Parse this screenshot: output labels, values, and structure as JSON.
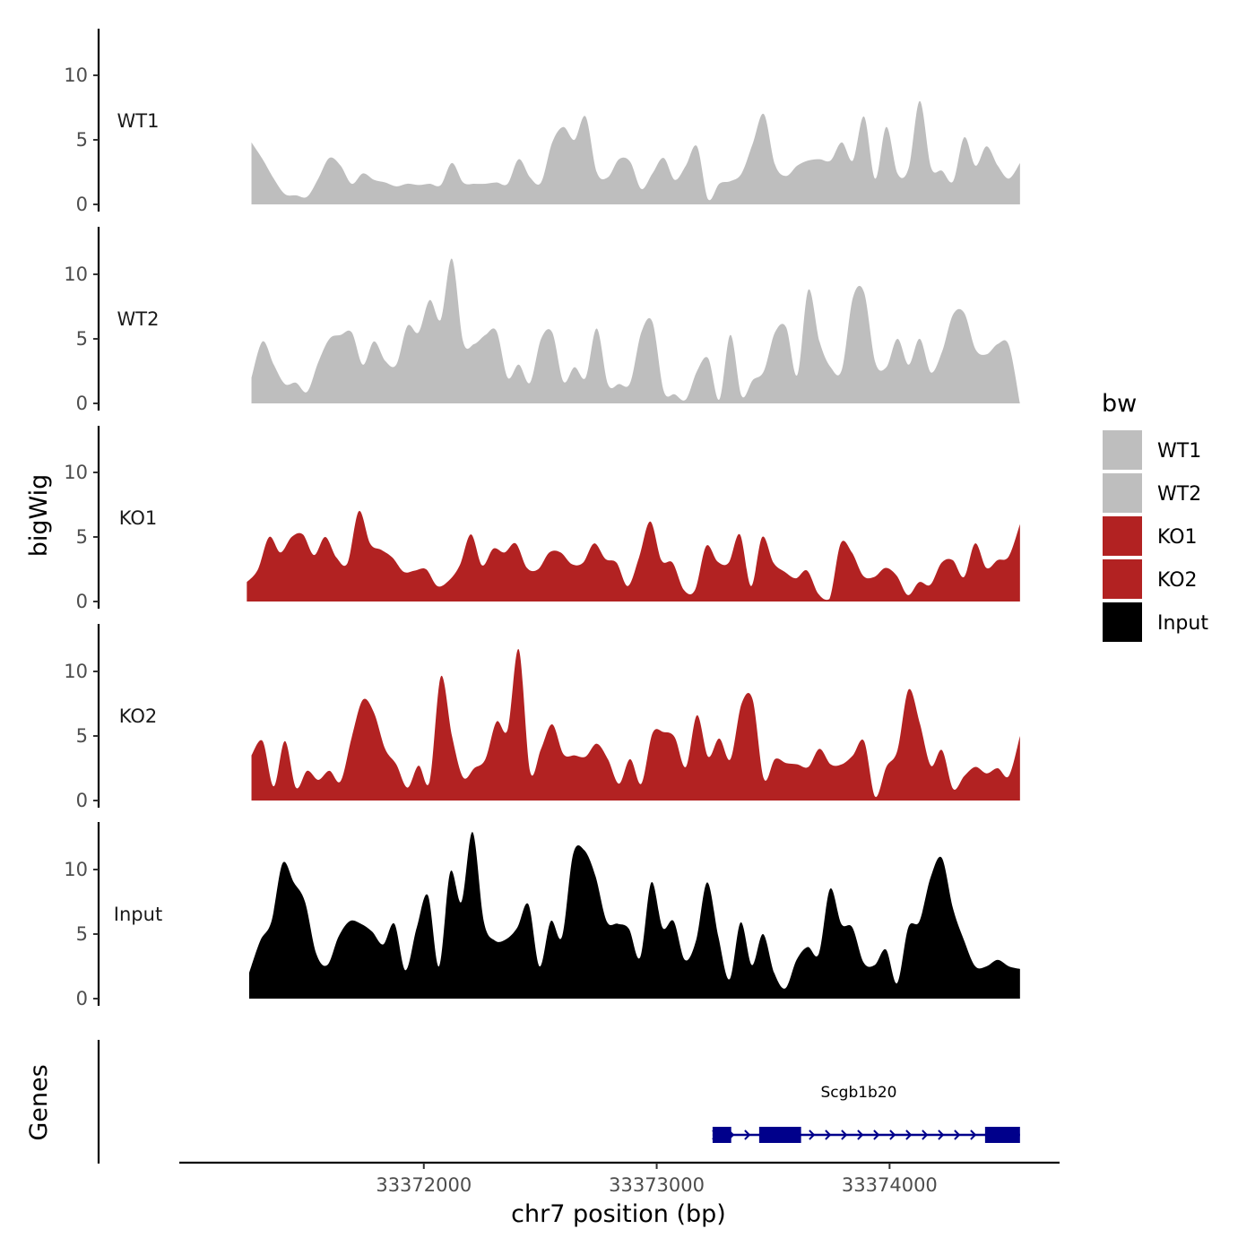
{
  "chart_data": {
    "type": "area",
    "title": "",
    "xlabel": "chr7 position (bp)",
    "ylabel": "bigWig",
    "genes_label": "Genes",
    "x_range": [
      33371260,
      33374560
    ],
    "xlim": [
      33370950,
      33374730
    ],
    "x_ticks": [
      33372000,
      33373000,
      33374000
    ],
    "x_tick_labels": [
      "33372000",
      "33373000",
      "33374000"
    ],
    "ylim": [
      0,
      13.5
    ],
    "y_ticks": [
      0,
      5,
      10
    ],
    "y_tick_labels": [
      "0",
      "5",
      "10"
    ],
    "legend": {
      "title": "bw",
      "entries": [
        {
          "label": "WT1",
          "color": "#bebebe"
        },
        {
          "label": "WT2",
          "color": "#bebebe"
        },
        {
          "label": "KO1",
          "color": "#b22222"
        },
        {
          "label": "KO2",
          "color": "#b22222"
        },
        {
          "label": "Input",
          "color": "#000000"
        }
      ]
    },
    "series": [
      {
        "name": "WT1",
        "color": "#bebebe",
        "x_start": 33371260,
        "x_end": 33374560,
        "values": [
          4.8,
          3.5,
          2.0,
          0.8,
          0.7,
          0.6,
          2.0,
          3.6,
          3.0,
          1.6,
          2.4,
          1.9,
          1.7,
          1.4,
          1.6,
          1.5,
          1.6,
          1.5,
          3.2,
          1.7,
          1.6,
          1.6,
          1.7,
          1.6,
          3.5,
          2.1,
          1.7,
          4.8,
          6.0,
          5.0,
          6.8,
          2.5,
          2.1,
          3.5,
          3.3,
          1.2,
          2.4,
          3.6,
          1.9,
          3.0,
          4.5,
          0.4,
          1.6,
          1.8,
          2.4,
          4.7,
          7.0,
          3.1,
          2.2,
          3.0,
          3.4,
          3.5,
          3.4,
          4.8,
          3.4,
          6.8,
          2.0,
          6.0,
          2.4,
          2.8,
          8.0,
          2.9,
          2.6,
          1.8,
          5.2,
          3.0,
          4.5,
          3.0,
          2.0,
          3.2
        ]
      },
      {
        "name": "WT2",
        "color": "#bebebe",
        "x_start": 33371260,
        "x_end": 33374560,
        "values": [
          2.0,
          4.8,
          3.0,
          1.5,
          1.6,
          0.9,
          3.2,
          5.0,
          5.3,
          5.5,
          3.0,
          4.8,
          3.3,
          3.0,
          6.0,
          5.5,
          8.0,
          6.5,
          11.2,
          4.8,
          4.6,
          5.3,
          5.6,
          2.0,
          3.0,
          1.6,
          5.0,
          5.5,
          1.7,
          2.8,
          2.0,
          5.8,
          1.5,
          1.5,
          1.6,
          5.5,
          6.3,
          1.0,
          0.7,
          0.3,
          2.5,
          3.5,
          0.3,
          5.3,
          0.6,
          1.8,
          2.5,
          5.5,
          5.9,
          2.2,
          8.8,
          4.8,
          2.8,
          2.6,
          8.2,
          8.6,
          3.2,
          2.8,
          5.0,
          3.0,
          5.0,
          2.4,
          4.0,
          6.9,
          7.0,
          4.2,
          3.8,
          4.6,
          4.5,
          0.0
        ]
      },
      {
        "name": "KO1",
        "color": "#b22222",
        "x_start": 33371240,
        "x_end": 33374560,
        "values": [
          1.5,
          2.5,
          5.0,
          3.8,
          5.0,
          5.2,
          3.6,
          5.0,
          3.4,
          3.0,
          7.0,
          4.5,
          4.0,
          3.4,
          2.3,
          2.4,
          2.5,
          1.2,
          1.6,
          2.8,
          5.2,
          2.8,
          4.1,
          3.8,
          4.5,
          2.6,
          2.5,
          3.8,
          3.8,
          2.9,
          3.0,
          4.5,
          3.3,
          3.0,
          1.2,
          3.4,
          6.2,
          3.2,
          3.0,
          0.9,
          0.9,
          4.3,
          3.1,
          3.0,
          5.2,
          1.2,
          5.0,
          3.0,
          2.3,
          1.8,
          2.4,
          0.6,
          0.2,
          4.5,
          3.8,
          2.0,
          1.9,
          2.6,
          2.0,
          0.5,
          1.5,
          1.3,
          3.0,
          3.2,
          1.9,
          4.5,
          2.6,
          3.2,
          3.5,
          6.0
        ]
      },
      {
        "name": "KO2",
        "color": "#b22222",
        "x_start": 33371260,
        "x_end": 33374560,
        "values": [
          3.5,
          4.6,
          1.1,
          4.6,
          1.0,
          2.3,
          1.6,
          2.3,
          1.5,
          4.9,
          7.8,
          6.8,
          4.0,
          2.8,
          1.0,
          2.7,
          1.5,
          9.6,
          5.0,
          1.8,
          2.5,
          3.2,
          6.1,
          5.5,
          11.7,
          2.3,
          4.0,
          5.9,
          3.6,
          3.5,
          3.4,
          4.4,
          3.2,
          1.3,
          3.2,
          1.3,
          5.2,
          5.3,
          4.9,
          2.6,
          6.6,
          3.4,
          4.8,
          3.2,
          7.5,
          7.8,
          1.7,
          3.2,
          2.9,
          2.8,
          2.6,
          4.0,
          2.8,
          2.8,
          3.5,
          4.6,
          0.3,
          2.6,
          3.9,
          8.6,
          6.0,
          2.7,
          3.9,
          0.9,
          1.9,
          2.6,
          2.1,
          2.5,
          1.9,
          5.0
        ]
      },
      {
        "name": "Input",
        "color": "#000000",
        "x_start": 33371250,
        "x_end": 33374560,
        "values": [
          2.0,
          4.5,
          6.0,
          10.5,
          9.0,
          7.5,
          3.5,
          2.6,
          4.8,
          6.0,
          5.8,
          5.2,
          4.2,
          5.8,
          2.2,
          5.5,
          8.0,
          2.5,
          9.8,
          7.5,
          12.9,
          6.0,
          4.5,
          4.6,
          5.5,
          7.3,
          2.5,
          6.0,
          4.8,
          11.2,
          11.5,
          9.5,
          6.0,
          5.8,
          5.4,
          3.2,
          9.0,
          5.5,
          6.0,
          3.0,
          4.5,
          9.0,
          4.8,
          1.5,
          5.9,
          2.6,
          5.0,
          2.0,
          0.8,
          3.0,
          4.0,
          3.5,
          8.5,
          5.8,
          5.5,
          2.8,
          2.6,
          3.8,
          1.2,
          5.5,
          6.0,
          9.4,
          10.9,
          7.0,
          4.5,
          2.5,
          2.5,
          3.0,
          2.5,
          2.3
        ]
      }
    ],
    "genes": [
      {
        "name": "Scgb1b20",
        "start": 33373240,
        "end": 33374560,
        "exons": [
          [
            33373240,
            33373320
          ],
          [
            33373440,
            33373620
          ],
          [
            33374410,
            33374560
          ]
        ]
      }
    ]
  }
}
